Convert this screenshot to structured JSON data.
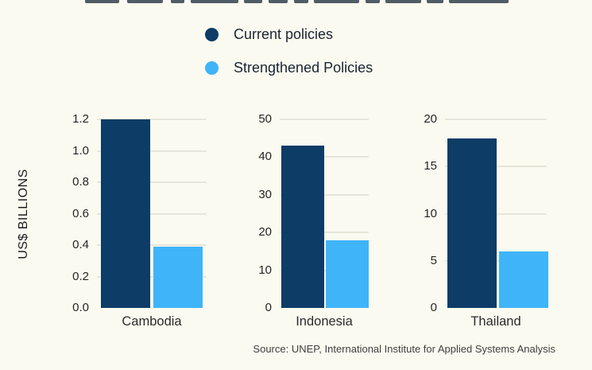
{
  "legend": {
    "items": [
      {
        "label": "Current policies",
        "color": "#0d3c66"
      },
      {
        "label": "Strengthened Policies",
        "color": "#40b4f9"
      }
    ]
  },
  "source": "Source: UNEP, International Institute for Applied Systems Analysis",
  "chart_data": {
    "type": "bar",
    "title": "",
    "ylabel": "US$ BILLIONS",
    "legend": [
      "Current policies",
      "Strengthened Policies"
    ],
    "legend_position": "top",
    "grid": true,
    "series_colors": {
      "current": "#0d3c66",
      "strengthened": "#40b4f9"
    },
    "charts": [
      {
        "category": "Cambodia",
        "ylim": [
          0,
          1.2
        ],
        "ticks": [
          "0.0",
          "0.2",
          "0.4",
          "0.6",
          "0.8",
          "1.0",
          "1.2"
        ],
        "tick_values": [
          0,
          0.2,
          0.4,
          0.6,
          0.8,
          1.0,
          1.2
        ],
        "values": {
          "current": 1.2,
          "strengthened": 0.39
        }
      },
      {
        "category": "Indonesia",
        "ylim": [
          0,
          50
        ],
        "ticks": [
          "0",
          "10",
          "20",
          "30",
          "40",
          "50"
        ],
        "tick_values": [
          0,
          10,
          20,
          30,
          40,
          50
        ],
        "values": {
          "current": 43,
          "strengthened": 18
        }
      },
      {
        "category": "Thailand",
        "ylim": [
          0,
          20
        ],
        "ticks": [
          "0",
          "5",
          "10",
          "15",
          "20"
        ],
        "tick_values": [
          0,
          5,
          10,
          15,
          20
        ],
        "values": {
          "current": 18,
          "strengthened": 6
        }
      }
    ]
  }
}
